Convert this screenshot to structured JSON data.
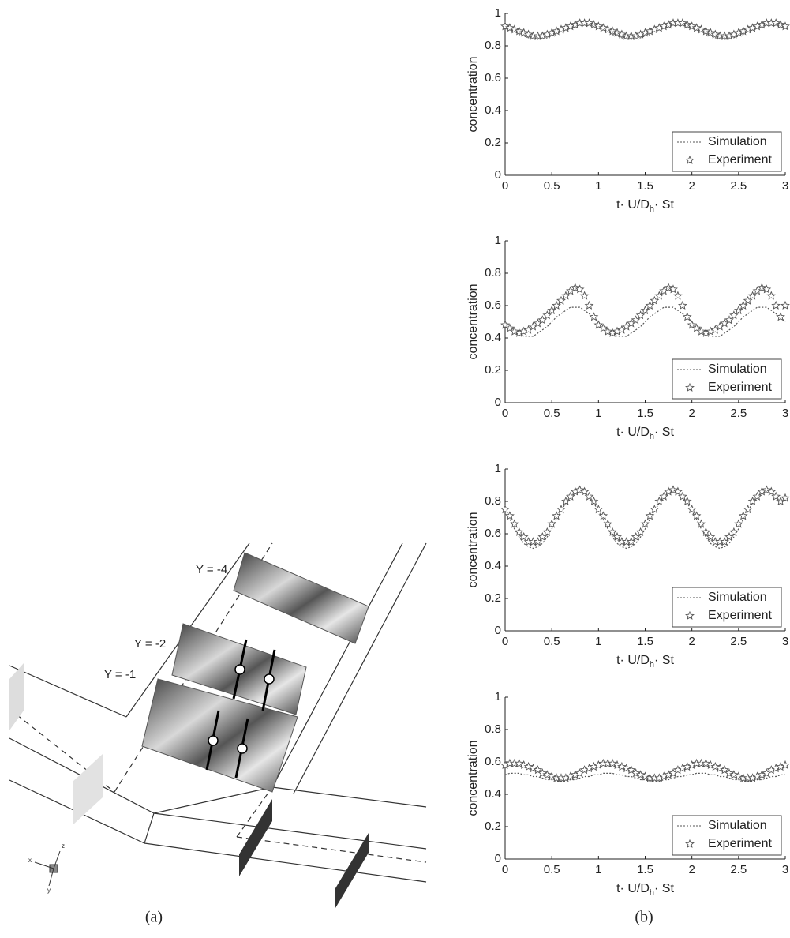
{
  "chart_data": [
    {
      "type": "line",
      "ylabel": "concentration",
      "xlabel": [
        "t· U/D",
        "h",
        "· St"
      ],
      "legend": "lower right",
      "xlim": [
        0,
        3
      ],
      "ylim": [
        0,
        1
      ],
      "xticks": [
        0,
        0.5,
        1,
        1.5,
        2,
        2.5,
        3
      ],
      "yticks": [
        0,
        0.2,
        0.4,
        0.6,
        0.8,
        1
      ],
      "x": [
        0,
        0.05,
        0.1,
        0.15,
        0.2,
        0.25,
        0.3,
        0.35,
        0.4,
        0.45,
        0.5,
        0.55,
        0.6,
        0.65,
        0.7,
        0.75,
        0.8,
        0.85,
        0.9,
        0.95,
        1,
        1.05,
        1.1,
        1.15,
        1.2,
        1.25,
        1.3,
        1.35,
        1.4,
        1.45,
        1.5,
        1.55,
        1.6,
        1.65,
        1.7,
        1.75,
        1.8,
        1.85,
        1.9,
        1.95,
        2,
        2.05,
        2.1,
        2.15,
        2.2,
        2.25,
        2.3,
        2.35,
        2.4,
        2.45,
        2.5,
        2.55,
        2.6,
        2.65,
        2.7,
        2.75,
        2.8,
        2.85,
        2.9,
        2.95,
        3
      ],
      "series": [
        {
          "name": "Simulation",
          "color": "#555555",
          "style": "dotted",
          "values": [
            0.92,
            0.9,
            0.89,
            0.87,
            0.86,
            0.85,
            0.84,
            0.84,
            0.84,
            0.85,
            0.86,
            0.87,
            0.89,
            0.9,
            0.92,
            0.93,
            0.94,
            0.94,
            0.94,
            0.93,
            0.92,
            0.9,
            0.89,
            0.87,
            0.86,
            0.85,
            0.84,
            0.84,
            0.84,
            0.85,
            0.86,
            0.87,
            0.89,
            0.9,
            0.92,
            0.93,
            0.94,
            0.94,
            0.94,
            0.93,
            0.92,
            0.9,
            0.89,
            0.87,
            0.86,
            0.85,
            0.84,
            0.84,
            0.84,
            0.85,
            0.86,
            0.87,
            0.89,
            0.9,
            0.92,
            0.93,
            0.94,
            0.94,
            0.94,
            0.93,
            0.92
          ]
        },
        {
          "name": "Experiment",
          "color": "#555555",
          "marker": "star",
          "values": [
            0.92,
            0.91,
            0.9,
            0.89,
            0.88,
            0.87,
            0.86,
            0.86,
            0.86,
            0.87,
            0.88,
            0.89,
            0.9,
            0.91,
            0.92,
            0.93,
            0.94,
            0.94,
            0.94,
            0.93,
            0.92,
            0.91,
            0.9,
            0.89,
            0.88,
            0.87,
            0.86,
            0.86,
            0.86,
            0.87,
            0.88,
            0.89,
            0.9,
            0.91,
            0.92,
            0.93,
            0.94,
            0.94,
            0.94,
            0.93,
            0.92,
            0.91,
            0.9,
            0.89,
            0.88,
            0.87,
            0.86,
            0.86,
            0.86,
            0.87,
            0.88,
            0.89,
            0.9,
            0.91,
            0.92,
            0.93,
            0.94,
            0.94,
            0.94,
            0.93,
            0.92
          ]
        }
      ]
    },
    {
      "type": "line",
      "ylabel": "concentration",
      "xlabel": [
        "t· U/D",
        "h",
        "· St"
      ],
      "legend": "lower right",
      "xlim": [
        0,
        3
      ],
      "ylim": [
        0,
        1
      ],
      "xticks": [
        0,
        0.5,
        1,
        1.5,
        2,
        2.5,
        3
      ],
      "yticks": [
        0,
        0.2,
        0.4,
        0.6,
        0.8,
        1
      ],
      "x": [
        0,
        0.05,
        0.1,
        0.15,
        0.2,
        0.25,
        0.3,
        0.35,
        0.4,
        0.45,
        0.5,
        0.55,
        0.6,
        0.65,
        0.7,
        0.75,
        0.8,
        0.85,
        0.9,
        0.95,
        1,
        1.05,
        1.1,
        1.15,
        1.2,
        1.25,
        1.3,
        1.35,
        1.4,
        1.45,
        1.5,
        1.55,
        1.6,
        1.65,
        1.7,
        1.75,
        1.8,
        1.85,
        1.9,
        1.95,
        2,
        2.05,
        2.1,
        2.15,
        2.2,
        2.25,
        2.3,
        2.35,
        2.4,
        2.45,
        2.5,
        2.55,
        2.6,
        2.65,
        2.7,
        2.75,
        2.8,
        2.85,
        2.9,
        2.95,
        3
      ],
      "series": [
        {
          "name": "Simulation",
          "color": "#555555",
          "style": "dotted",
          "values": [
            0.5,
            0.47,
            0.45,
            0.43,
            0.41,
            0.41,
            0.41,
            0.43,
            0.45,
            0.47,
            0.5,
            0.53,
            0.55,
            0.57,
            0.59,
            0.59,
            0.59,
            0.57,
            0.55,
            0.53,
            0.5,
            0.47,
            0.45,
            0.43,
            0.41,
            0.41,
            0.41,
            0.43,
            0.45,
            0.47,
            0.5,
            0.53,
            0.55,
            0.57,
            0.59,
            0.59,
            0.59,
            0.57,
            0.55,
            0.53,
            0.5,
            0.47,
            0.45,
            0.43,
            0.41,
            0.41,
            0.41,
            0.43,
            0.45,
            0.47,
            0.5,
            0.53,
            0.55,
            0.57,
            0.59,
            0.59,
            0.59,
            0.57,
            0.55,
            0.53,
            0.5
          ]
        },
        {
          "name": "Experiment",
          "color": "#555555",
          "marker": "star",
          "values": [
            0.48,
            0.46,
            0.44,
            0.43,
            0.44,
            0.45,
            0.47,
            0.49,
            0.51,
            0.54,
            0.57,
            0.6,
            0.63,
            0.66,
            0.69,
            0.71,
            0.7,
            0.66,
            0.6,
            0.53,
            0.48,
            0.46,
            0.44,
            0.43,
            0.44,
            0.45,
            0.47,
            0.49,
            0.51,
            0.54,
            0.57,
            0.6,
            0.63,
            0.66,
            0.69,
            0.71,
            0.7,
            0.66,
            0.6,
            0.53,
            0.48,
            0.46,
            0.44,
            0.43,
            0.44,
            0.45,
            0.47,
            0.49,
            0.51,
            0.54,
            0.57,
            0.6,
            0.63,
            0.66,
            0.69,
            0.71,
            0.7,
            0.66,
            0.6,
            0.53,
            0.6
          ]
        }
      ]
    },
    {
      "type": "line",
      "ylabel": "concentration",
      "xlabel": [
        "t· U/D",
        "h",
        "· St"
      ],
      "legend": "lower right",
      "xlim": [
        0,
        3
      ],
      "ylim": [
        0,
        1
      ],
      "xticks": [
        0,
        0.5,
        1,
        1.5,
        2,
        2.5,
        3
      ],
      "yticks": [
        0,
        0.2,
        0.4,
        0.6,
        0.8,
        1
      ],
      "x": [
        0,
        0.05,
        0.1,
        0.15,
        0.2,
        0.25,
        0.3,
        0.35,
        0.4,
        0.45,
        0.5,
        0.55,
        0.6,
        0.65,
        0.7,
        0.75,
        0.8,
        0.85,
        0.9,
        0.95,
        1,
        1.05,
        1.1,
        1.15,
        1.2,
        1.25,
        1.3,
        1.35,
        1.4,
        1.45,
        1.5,
        1.55,
        1.6,
        1.65,
        1.7,
        1.75,
        1.8,
        1.85,
        1.9,
        1.95,
        2,
        2.05,
        2.1,
        2.15,
        2.2,
        2.25,
        2.3,
        2.35,
        2.4,
        2.45,
        2.5,
        2.55,
        2.6,
        2.65,
        2.7,
        2.75,
        2.8,
        2.85,
        2.9,
        2.95,
        3
      ],
      "series": [
        {
          "name": "Simulation",
          "color": "#555555",
          "style": "dotted",
          "values": [
            0.74,
            0.69,
            0.63,
            0.58,
            0.54,
            0.52,
            0.51,
            0.52,
            0.54,
            0.58,
            0.63,
            0.69,
            0.74,
            0.79,
            0.83,
            0.85,
            0.86,
            0.85,
            0.83,
            0.79,
            0.74,
            0.69,
            0.63,
            0.58,
            0.54,
            0.52,
            0.51,
            0.52,
            0.54,
            0.58,
            0.63,
            0.69,
            0.74,
            0.79,
            0.83,
            0.85,
            0.86,
            0.85,
            0.83,
            0.79,
            0.74,
            0.69,
            0.63,
            0.58,
            0.54,
            0.52,
            0.51,
            0.52,
            0.54,
            0.58,
            0.63,
            0.69,
            0.74,
            0.79,
            0.83,
            0.85,
            0.86,
            0.85,
            0.83,
            0.79,
            0.81
          ]
        },
        {
          "name": "Experiment",
          "color": "#555555",
          "marker": "star",
          "values": [
            0.75,
            0.71,
            0.66,
            0.61,
            0.58,
            0.55,
            0.55,
            0.55,
            0.58,
            0.61,
            0.66,
            0.71,
            0.75,
            0.8,
            0.83,
            0.86,
            0.87,
            0.86,
            0.83,
            0.8,
            0.75,
            0.71,
            0.66,
            0.61,
            0.58,
            0.55,
            0.55,
            0.55,
            0.58,
            0.61,
            0.66,
            0.71,
            0.75,
            0.8,
            0.83,
            0.86,
            0.87,
            0.86,
            0.83,
            0.8,
            0.75,
            0.71,
            0.66,
            0.61,
            0.58,
            0.55,
            0.55,
            0.55,
            0.58,
            0.61,
            0.66,
            0.71,
            0.75,
            0.8,
            0.83,
            0.86,
            0.87,
            0.86,
            0.83,
            0.8,
            0.82
          ]
        }
      ]
    },
    {
      "type": "line",
      "ylabel": "concentration",
      "xlabel": [
        "t· U/D",
        "h",
        "· St"
      ],
      "legend": "lower right",
      "xlim": [
        0,
        3
      ],
      "ylim": [
        0,
        1
      ],
      "xticks": [
        0,
        0.5,
        1,
        1.5,
        2,
        2.5,
        3
      ],
      "yticks": [
        0,
        0.2,
        0.4,
        0.6,
        0.8,
        1
      ],
      "x": [
        0,
        0.05,
        0.1,
        0.15,
        0.2,
        0.25,
        0.3,
        0.35,
        0.4,
        0.45,
        0.5,
        0.55,
        0.6,
        0.65,
        0.7,
        0.75,
        0.8,
        0.85,
        0.9,
        0.95,
        1,
        1.05,
        1.1,
        1.15,
        1.2,
        1.25,
        1.3,
        1.35,
        1.4,
        1.45,
        1.5,
        1.55,
        1.6,
        1.65,
        1.7,
        1.75,
        1.8,
        1.85,
        1.9,
        1.95,
        2,
        2.05,
        2.1,
        2.15,
        2.2,
        2.25,
        2.3,
        2.35,
        2.4,
        2.45,
        2.5,
        2.55,
        2.6,
        2.65,
        2.7,
        2.75,
        2.8,
        2.85,
        2.9,
        2.95,
        3
      ],
      "series": [
        {
          "name": "Simulation",
          "color": "#555555",
          "style": "dotted",
          "values": [
            0.52,
            0.53,
            0.53,
            0.53,
            0.52,
            0.52,
            0.51,
            0.51,
            0.5,
            0.49,
            0.49,
            0.48,
            0.48,
            0.48,
            0.49,
            0.49,
            0.5,
            0.51,
            0.51,
            0.52,
            0.52,
            0.53,
            0.53,
            0.53,
            0.52,
            0.52,
            0.51,
            0.51,
            0.5,
            0.49,
            0.49,
            0.48,
            0.48,
            0.48,
            0.49,
            0.49,
            0.5,
            0.51,
            0.51,
            0.52,
            0.52,
            0.53,
            0.53,
            0.53,
            0.52,
            0.52,
            0.51,
            0.51,
            0.5,
            0.49,
            0.49,
            0.48,
            0.48,
            0.48,
            0.49,
            0.49,
            0.5,
            0.51,
            0.51,
            0.52,
            0.52
          ]
        },
        {
          "name": "Experiment",
          "color": "#555555",
          "marker": "star",
          "values": [
            0.58,
            0.59,
            0.59,
            0.59,
            0.58,
            0.57,
            0.56,
            0.55,
            0.53,
            0.52,
            0.51,
            0.5,
            0.5,
            0.5,
            0.51,
            0.52,
            0.53,
            0.55,
            0.56,
            0.57,
            0.58,
            0.59,
            0.59,
            0.59,
            0.58,
            0.57,
            0.56,
            0.55,
            0.53,
            0.52,
            0.51,
            0.5,
            0.5,
            0.5,
            0.51,
            0.52,
            0.53,
            0.55,
            0.56,
            0.57,
            0.58,
            0.59,
            0.59,
            0.59,
            0.58,
            0.57,
            0.56,
            0.55,
            0.53,
            0.52,
            0.51,
            0.5,
            0.5,
            0.5,
            0.51,
            0.52,
            0.53,
            0.55,
            0.56,
            0.57,
            0.58
          ]
        }
      ]
    }
  ],
  "diagram": {
    "labels": [
      "Y = -4",
      "Y = -2",
      "Y = -1"
    ],
    "axes": [
      "x",
      "z",
      "y"
    ]
  },
  "captions": [
    "(a)",
    "(b)"
  ]
}
